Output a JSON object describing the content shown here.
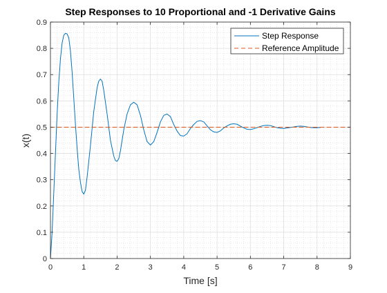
{
  "chart_data": {
    "type": "line",
    "title": "Step Responses to 10 Proportional and -1 Derivative Gains",
    "xlabel": "Time [s]",
    "ylabel": "x(t)",
    "xlim": [
      0,
      9
    ],
    "ylim": [
      0,
      0.9
    ],
    "xticks": [
      "0",
      "1",
      "2",
      "3",
      "4",
      "5",
      "6",
      "7",
      "8",
      "9"
    ],
    "yticks": [
      "0",
      "0.1",
      "0.2",
      "0.3",
      "0.4",
      "0.5",
      "0.6",
      "0.7",
      "0.8",
      "0.9"
    ],
    "grid": true,
    "minor_grid": true,
    "legend_position": "top-right",
    "series": [
      {
        "name": "Step Response",
        "color": "#0072BD",
        "style": "solid",
        "points": [
          [
            0,
            0
          ],
          [
            0.05,
            0.1
          ],
          [
            0.1,
            0.25
          ],
          [
            0.15,
            0.4
          ],
          [
            0.2,
            0.55
          ],
          [
            0.25,
            0.67
          ],
          [
            0.3,
            0.76
          ],
          [
            0.35,
            0.82
          ],
          [
            0.4,
            0.85
          ],
          [
            0.45,
            0.857
          ],
          [
            0.5,
            0.855
          ],
          [
            0.55,
            0.84
          ],
          [
            0.6,
            0.79
          ],
          [
            0.65,
            0.71
          ],
          [
            0.7,
            0.61
          ],
          [
            0.75,
            0.51
          ],
          [
            0.8,
            0.42
          ],
          [
            0.85,
            0.34
          ],
          [
            0.9,
            0.29
          ],
          [
            0.95,
            0.255
          ],
          [
            1.0,
            0.245
          ],
          [
            1.05,
            0.26
          ],
          [
            1.1,
            0.31
          ],
          [
            1.2,
            0.43
          ],
          [
            1.3,
            0.56
          ],
          [
            1.4,
            0.65
          ],
          [
            1.45,
            0.675
          ],
          [
            1.5,
            0.683
          ],
          [
            1.55,
            0.675
          ],
          [
            1.6,
            0.64
          ],
          [
            1.7,
            0.55
          ],
          [
            1.8,
            0.45
          ],
          [
            1.9,
            0.39
          ],
          [
            1.95,
            0.373
          ],
          [
            2.0,
            0.37
          ],
          [
            2.05,
            0.38
          ],
          [
            2.1,
            0.41
          ],
          [
            2.2,
            0.49
          ],
          [
            2.3,
            0.55
          ],
          [
            2.4,
            0.585
          ],
          [
            2.5,
            0.595
          ],
          [
            2.6,
            0.585
          ],
          [
            2.7,
            0.545
          ],
          [
            2.8,
            0.49
          ],
          [
            2.9,
            0.445
          ],
          [
            3.0,
            0.432
          ],
          [
            3.1,
            0.445
          ],
          [
            3.2,
            0.48
          ],
          [
            3.3,
            0.52
          ],
          [
            3.4,
            0.545
          ],
          [
            3.5,
            0.55
          ],
          [
            3.6,
            0.54
          ],
          [
            3.7,
            0.51
          ],
          [
            3.8,
            0.485
          ],
          [
            3.9,
            0.468
          ],
          [
            4.0,
            0.466
          ],
          [
            4.1,
            0.475
          ],
          [
            4.2,
            0.495
          ],
          [
            4.3,
            0.51
          ],
          [
            4.4,
            0.522
          ],
          [
            4.5,
            0.525
          ],
          [
            4.6,
            0.52
          ],
          [
            4.7,
            0.505
          ],
          [
            4.8,
            0.49
          ],
          [
            4.9,
            0.482
          ],
          [
            5.0,
            0.48
          ],
          [
            5.1,
            0.486
          ],
          [
            5.2,
            0.497
          ],
          [
            5.3,
            0.505
          ],
          [
            5.4,
            0.511
          ],
          [
            5.5,
            0.513
          ],
          [
            5.6,
            0.511
          ],
          [
            5.7,
            0.504
          ],
          [
            5.8,
            0.497
          ],
          [
            5.9,
            0.492
          ],
          [
            6.0,
            0.491
          ],
          [
            6.1,
            0.494
          ],
          [
            6.2,
            0.498
          ],
          [
            6.3,
            0.503
          ],
          [
            6.4,
            0.506
          ],
          [
            6.5,
            0.507
          ],
          [
            6.6,
            0.506
          ],
          [
            6.7,
            0.502
          ],
          [
            6.8,
            0.498
          ],
          [
            6.9,
            0.496
          ],
          [
            7.0,
            0.495
          ],
          [
            7.1,
            0.497
          ],
          [
            7.2,
            0.499
          ],
          [
            7.3,
            0.501
          ],
          [
            7.4,
            0.503
          ],
          [
            7.5,
            0.504
          ],
          [
            7.6,
            0.503
          ],
          [
            7.7,
            0.501
          ],
          [
            7.8,
            0.499
          ],
          [
            7.9,
            0.498
          ],
          [
            8.0,
            0.498
          ],
          [
            8.1,
            0.499
          ]
        ]
      },
      {
        "name": "Reference Amplitude",
        "color": "#D95319",
        "style": "dashed",
        "points": [
          [
            0,
            0.5
          ],
          [
            9,
            0.5
          ]
        ]
      }
    ]
  }
}
